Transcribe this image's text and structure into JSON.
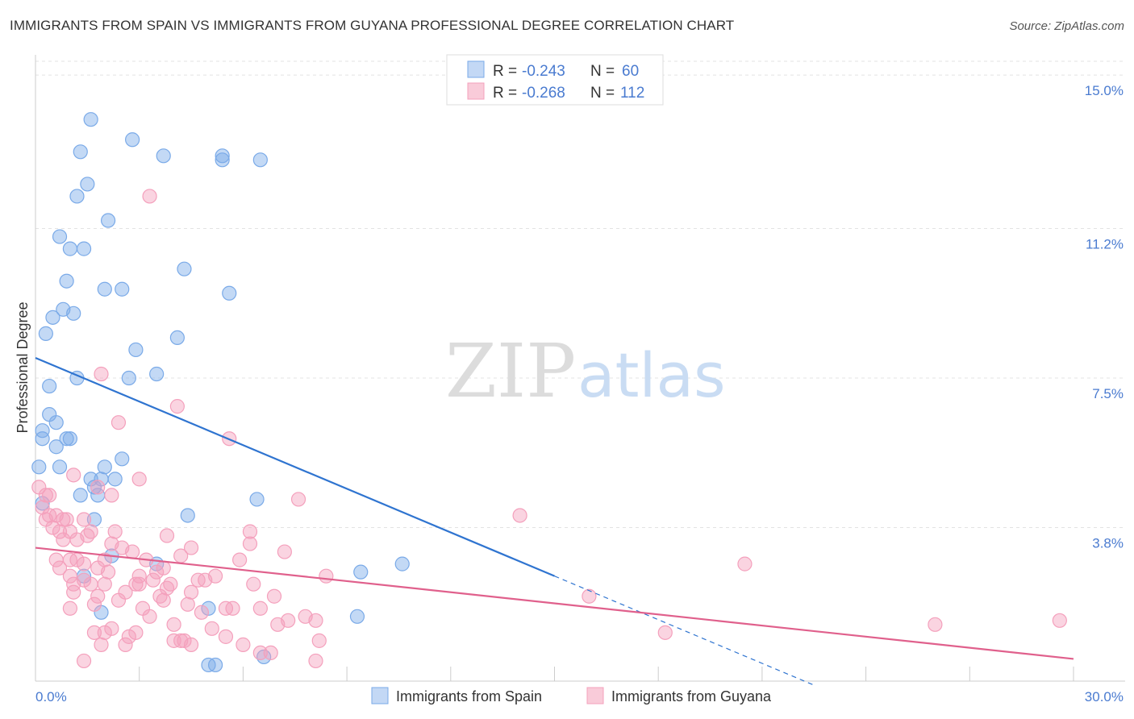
{
  "header": {
    "title": "IMMIGRANTS FROM SPAIN VS IMMIGRANTS FROM GUYANA PROFESSIONAL DEGREE CORRELATION CHART",
    "source": "Source: ZipAtlas.com"
  },
  "watermark": {
    "zip": "ZIP",
    "atlas": "atlas"
  },
  "legend": {
    "rows": [
      {
        "r_label": "R = ",
        "r_value": "-0.243",
        "n_label": "N = ",
        "n_value": "60"
      },
      {
        "r_label": "R = ",
        "r_value": "-0.268",
        "n_label": "N = ",
        "n_value": "112"
      }
    ]
  },
  "bottom_legend": {
    "spain": "Immigrants from Spain",
    "guyana": "Immigrants from Guyana"
  },
  "chart_data": {
    "type": "scatter",
    "title": "IMMIGRANTS FROM SPAIN VS IMMIGRANTS FROM GUYANA PROFESSIONAL DEGREE CORRELATION CHART",
    "xlabel": "",
    "ylabel": "Professional Degree",
    "xlim": [
      0,
      30
    ],
    "ylim": [
      0,
      15.5
    ],
    "x_tick_labels": [
      "0.0%",
      "30.0%"
    ],
    "y_ticks": [
      3.8,
      7.5,
      11.2,
      15.0
    ],
    "y_tick_labels": [
      "3.8%",
      "7.5%",
      "11.2%",
      "15.0%"
    ],
    "grid": true,
    "colors": {
      "spain": "#7aaae8",
      "spain_line": "#2f74d0",
      "guyana": "#f4a0bc",
      "guyana_line": "#e0608c"
    },
    "series": [
      {
        "name": "Immigrants from Spain",
        "r": -0.243,
        "n": 60,
        "trend": {
          "x0": 0,
          "y0": 8.0,
          "x1": 15,
          "y1": 2.6,
          "dash_to_x": 22.5
        },
        "points": [
          [
            1.6,
            13.9
          ],
          [
            2.8,
            13.4
          ],
          [
            1.3,
            13.1
          ],
          [
            3.7,
            13.0
          ],
          [
            5.4,
            13.0
          ],
          [
            5.4,
            12.9
          ],
          [
            6.5,
            12.9
          ],
          [
            1.5,
            12.3
          ],
          [
            1.2,
            12.0
          ],
          [
            2.1,
            11.4
          ],
          [
            0.7,
            11.0
          ],
          [
            1.0,
            10.7
          ],
          [
            1.4,
            10.7
          ],
          [
            4.3,
            10.2
          ],
          [
            0.9,
            9.9
          ],
          [
            2.0,
            9.7
          ],
          [
            2.5,
            9.7
          ],
          [
            5.6,
            9.6
          ],
          [
            0.8,
            9.2
          ],
          [
            1.1,
            9.1
          ],
          [
            0.5,
            9.0
          ],
          [
            0.3,
            8.6
          ],
          [
            4.1,
            8.5
          ],
          [
            2.9,
            8.2
          ],
          [
            3.5,
            7.6
          ],
          [
            1.2,
            7.5
          ],
          [
            2.7,
            7.5
          ],
          [
            0.4,
            7.3
          ],
          [
            0.4,
            6.6
          ],
          [
            0.6,
            6.4
          ],
          [
            0.2,
            6.2
          ],
          [
            0.2,
            6.0
          ],
          [
            0.9,
            6.0
          ],
          [
            1.0,
            6.0
          ],
          [
            0.6,
            5.8
          ],
          [
            2.5,
            5.5
          ],
          [
            0.1,
            5.3
          ],
          [
            0.7,
            5.3
          ],
          [
            2.0,
            5.3
          ],
          [
            1.6,
            5.0
          ],
          [
            1.9,
            5.0
          ],
          [
            2.3,
            5.0
          ],
          [
            1.7,
            4.8
          ],
          [
            1.3,
            4.6
          ],
          [
            1.8,
            4.6
          ],
          [
            0.2,
            4.4
          ],
          [
            6.4,
            4.5
          ],
          [
            1.7,
            4.0
          ],
          [
            4.4,
            4.1
          ],
          [
            2.2,
            3.1
          ],
          [
            3.5,
            2.9
          ],
          [
            10.6,
            2.9
          ],
          [
            9.4,
            2.7
          ],
          [
            1.4,
            2.6
          ],
          [
            5.0,
            1.8
          ],
          [
            9.3,
            1.6
          ],
          [
            1.9,
            1.7
          ],
          [
            6.6,
            0.6
          ],
          [
            5.0,
            0.4
          ],
          [
            5.2,
            0.4
          ]
        ]
      },
      {
        "name": "Immigrants from Guyana",
        "r": -0.268,
        "n": 112,
        "trend": {
          "x0": 0,
          "y0": 3.3,
          "x1": 30,
          "y1": 0.55
        },
        "points": [
          [
            3.3,
            12.0
          ],
          [
            1.9,
            7.6
          ],
          [
            4.1,
            6.8
          ],
          [
            2.4,
            6.4
          ],
          [
            5.6,
            6.0
          ],
          [
            3.0,
            5.0
          ],
          [
            1.1,
            5.1
          ],
          [
            0.1,
            4.8
          ],
          [
            0.3,
            4.6
          ],
          [
            2.2,
            4.6
          ],
          [
            7.6,
            4.5
          ],
          [
            1.8,
            4.8
          ],
          [
            0.2,
            4.3
          ],
          [
            14.0,
            4.1
          ],
          [
            0.4,
            4.1
          ],
          [
            0.6,
            4.1
          ],
          [
            0.8,
            4.0
          ],
          [
            1.4,
            4.0
          ],
          [
            1.0,
            3.7
          ],
          [
            1.6,
            3.7
          ],
          [
            2.3,
            3.7
          ],
          [
            3.8,
            3.6
          ],
          [
            0.5,
            3.8
          ],
          [
            0.7,
            3.7
          ],
          [
            0.8,
            3.5
          ],
          [
            1.2,
            3.5
          ],
          [
            6.2,
            3.7
          ],
          [
            6.2,
            3.4
          ],
          [
            2.5,
            3.3
          ],
          [
            2.8,
            3.2
          ],
          [
            4.5,
            3.3
          ],
          [
            7.2,
            3.2
          ],
          [
            0.6,
            3.0
          ],
          [
            1.0,
            3.0
          ],
          [
            1.2,
            3.0
          ],
          [
            2.0,
            3.0
          ],
          [
            3.2,
            3.0
          ],
          [
            0.7,
            2.8
          ],
          [
            1.4,
            2.9
          ],
          [
            1.8,
            2.8
          ],
          [
            3.7,
            2.8
          ],
          [
            20.5,
            2.9
          ],
          [
            1.0,
            2.6
          ],
          [
            1.4,
            2.5
          ],
          [
            3.0,
            2.6
          ],
          [
            3.4,
            2.5
          ],
          [
            5.2,
            2.6
          ],
          [
            8.4,
            2.6
          ],
          [
            1.1,
            2.4
          ],
          [
            1.6,
            2.4
          ],
          [
            2.0,
            2.4
          ],
          [
            2.9,
            2.4
          ],
          [
            3.0,
            2.4
          ],
          [
            3.8,
            2.3
          ],
          [
            4.7,
            2.5
          ],
          [
            4.9,
            2.5
          ],
          [
            3.6,
            2.1
          ],
          [
            3.7,
            2.0
          ],
          [
            4.5,
            2.2
          ],
          [
            1.8,
            2.1
          ],
          [
            2.4,
            2.0
          ],
          [
            16.0,
            2.1
          ],
          [
            1.0,
            1.8
          ],
          [
            3.1,
            1.8
          ],
          [
            4.8,
            1.7
          ],
          [
            5.7,
            1.8
          ],
          [
            6.5,
            1.8
          ],
          [
            5.5,
            1.8
          ],
          [
            7.3,
            1.5
          ],
          [
            8.1,
            1.5
          ],
          [
            7.8,
            1.6
          ],
          [
            4.0,
            1.4
          ],
          [
            5.1,
            1.3
          ],
          [
            2.2,
            1.3
          ],
          [
            1.7,
            1.2
          ],
          [
            2.0,
            1.2
          ],
          [
            2.7,
            1.1
          ],
          [
            4.0,
            1.0
          ],
          [
            4.2,
            1.0
          ],
          [
            4.3,
            1.0
          ],
          [
            4.5,
            0.9
          ],
          [
            8.2,
            1.0
          ],
          [
            1.9,
            0.9
          ],
          [
            2.6,
            0.9
          ],
          [
            6.0,
            0.9
          ],
          [
            6.5,
            0.7
          ],
          [
            6.8,
            0.7
          ],
          [
            1.4,
            0.5
          ],
          [
            8.1,
            0.5
          ],
          [
            26.0,
            1.4
          ],
          [
            29.6,
            1.5
          ],
          [
            18.2,
            1.2
          ],
          [
            0.4,
            4.6
          ],
          [
            0.9,
            4.0
          ],
          [
            2.2,
            3.4
          ],
          [
            5.9,
            3.0
          ],
          [
            1.5,
            3.6
          ],
          [
            3.5,
            2.7
          ],
          [
            4.2,
            3.1
          ],
          [
            6.3,
            2.4
          ],
          [
            2.1,
            2.7
          ],
          [
            3.3,
            1.6
          ],
          [
            1.1,
            2.2
          ],
          [
            2.6,
            2.2
          ],
          [
            4.4,
            1.9
          ],
          [
            5.5,
            1.1
          ],
          [
            6.9,
            2.1
          ],
          [
            0.3,
            4.0
          ],
          [
            3.9,
            2.4
          ],
          [
            1.7,
            1.9
          ],
          [
            2.9,
            1.2
          ],
          [
            7.0,
            1.4
          ]
        ]
      }
    ]
  }
}
